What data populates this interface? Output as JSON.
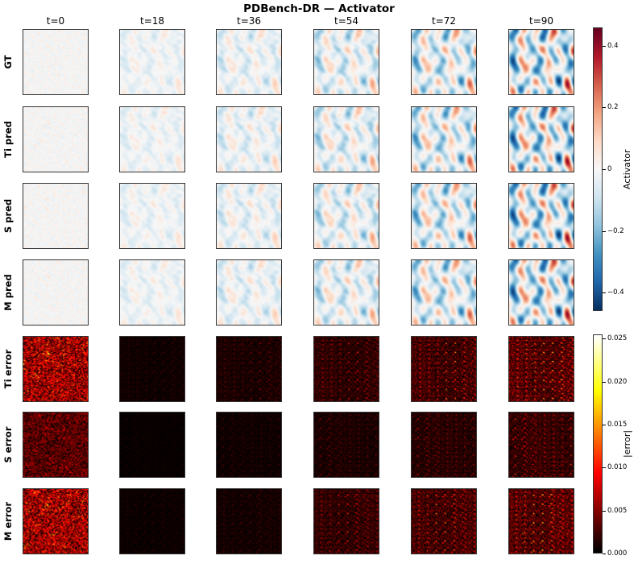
{
  "chart_data": {
    "type": "heatmap",
    "title": "PDBench-DR  —  Activator",
    "columns": [
      "t=0",
      "t=18",
      "t=36",
      "t=54",
      "t=72",
      "t=90"
    ],
    "rows": [
      "GT",
      "Ti pred",
      "S pred",
      "M pred",
      "Ti error",
      "S error",
      "M error"
    ],
    "field_amplitude": [
      0.08,
      0.14,
      0.2,
      0.28,
      0.36,
      0.46
    ],
    "error_amplitude": {
      "Ti error": [
        0.02,
        0.004,
        0.007,
        0.012,
        0.017,
        0.022
      ],
      "S error": [
        0.011,
        0.002,
        0.004,
        0.007,
        0.01,
        0.014
      ],
      "M error": [
        0.02,
        0.003,
        0.005,
        0.013,
        0.018,
        0.022
      ]
    },
    "colorbars": [
      {
        "label": "Activator",
        "colormap": "RdBu_r",
        "range": [
          -0.46,
          0.46
        ],
        "ticks": [
          0.4,
          0.2,
          0.0,
          -0.2,
          -0.4
        ],
        "tick_labels": [
          "0.4",
          "0.2",
          "0",
          "−0.2",
          "−0.4"
        ]
      },
      {
        "label": "|error|",
        "colormap": "hot",
        "range": [
          0.0,
          0.0255
        ],
        "ticks": [
          0.025,
          0.02,
          0.015,
          0.01,
          0.005,
          0.0
        ],
        "tick_labels": [
          "0.025",
          "0.020",
          "0.015",
          "0.010",
          "0.005",
          "0.000"
        ]
      }
    ]
  }
}
